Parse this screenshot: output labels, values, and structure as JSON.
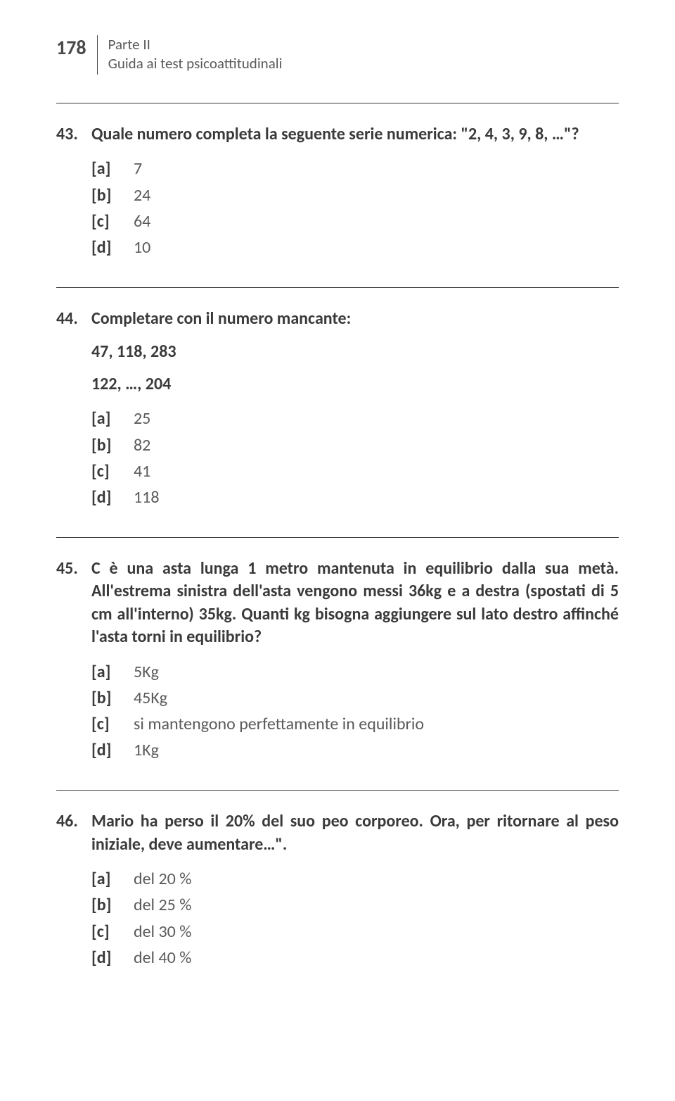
{
  "header": {
    "page_number": "178",
    "part_label": "Parte II",
    "subtitle": "Guida ai test psicoattitudinali"
  },
  "questions": [
    {
      "number": "43.",
      "text": "Quale numero completa la seguente serie numerica: \"2, 4, 3, 9, 8, …\"?",
      "extra_lines": [],
      "options": [
        {
          "label": "[a]",
          "value": "7"
        },
        {
          "label": "[b]",
          "value": "24"
        },
        {
          "label": "[c]",
          "value": "64"
        },
        {
          "label": "[d]",
          "value": "10"
        }
      ]
    },
    {
      "number": "44.",
      "text": "Completare con il numero mancante:",
      "extra_lines": [
        "47, 118, 283",
        "122, …, 204"
      ],
      "options": [
        {
          "label": "[a]",
          "value": "25"
        },
        {
          "label": "[b]",
          "value": "82"
        },
        {
          "label": "[c]",
          "value": "41"
        },
        {
          "label": "[d]",
          "value": "118"
        }
      ]
    },
    {
      "number": "45.",
      "text": "C è una asta lunga 1 metro mantenuta in equilibrio dalla sua metà. All'estrema sinistra dell'asta vengono messi 36kg e a destra (spostati di 5 cm all'interno) 35kg. Quanti kg bisogna aggiungere sul lato destro affinché l'asta torni in equilibrio?",
      "extra_lines": [],
      "options": [
        {
          "label": "[a]",
          "value": "5Kg"
        },
        {
          "label": "[b]",
          "value": "45Kg"
        },
        {
          "label": "[c]",
          "value": "si mantengono perfettamente in equilibrio"
        },
        {
          "label": "[d]",
          "value": "1Kg"
        }
      ]
    },
    {
      "number": "46.",
      "text": "Mario ha perso il 20% del suo peo corporeo. Ora, per ritornare al peso iniziale, deve aumentare…\".",
      "extra_lines": [],
      "options": [
        {
          "label": "[a]",
          "value": "del 20 %"
        },
        {
          "label": "[b]",
          "value": "del 25 %"
        },
        {
          "label": "[c]",
          "value": "del 30 %"
        },
        {
          "label": "[d]",
          "value": "del 40 %"
        }
      ]
    }
  ]
}
